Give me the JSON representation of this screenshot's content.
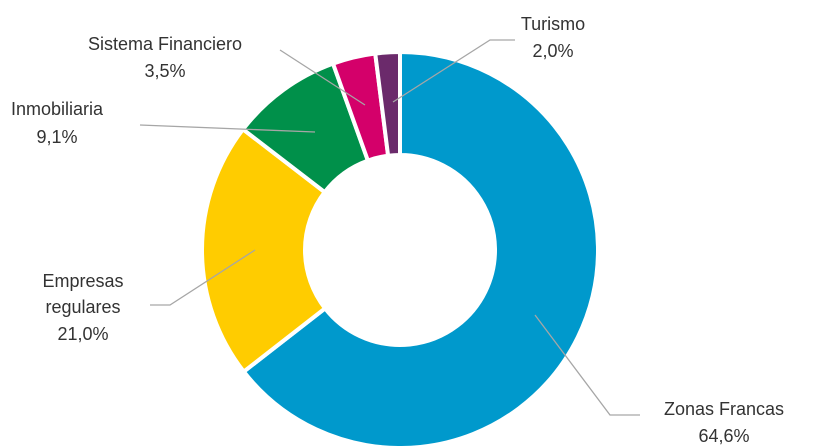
{
  "chart_data": {
    "type": "donut",
    "categories": [
      "Zonas Francas",
      "Empresas regulares",
      "Inmobiliaria",
      "Sistema Financiero",
      "Turismo"
    ],
    "values": [
      64.6,
      21.0,
      9.1,
      3.5,
      2.0
    ],
    "value_labels": [
      "64,6%",
      "21,0%",
      "9,1%",
      "3,5%",
      "2,0%"
    ],
    "colors": [
      "#0099cc",
      "#ffcc00",
      "#00904a",
      "#d4006a",
      "#6b2a6b"
    ]
  }
}
